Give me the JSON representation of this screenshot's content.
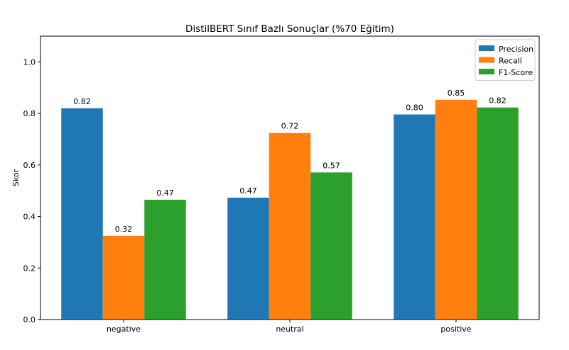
{
  "chart_data": {
    "type": "bar",
    "title": "DistilBERT Sınıf Bazlı Sonuçlar (%70 Eğitim)",
    "xlabel": "",
    "ylabel": "Skor",
    "ylim": [
      0,
      1.1
    ],
    "yticks": [
      0.0,
      0.2,
      0.4,
      0.6,
      0.8,
      1.0
    ],
    "ytick_labels": [
      "0.0",
      "0.2",
      "0.4",
      "0.6",
      "0.8",
      "1.0"
    ],
    "categories": [
      "negative",
      "neutral",
      "positive"
    ],
    "grid": false,
    "legend_position": "top-right",
    "series": [
      {
        "name": "Precision",
        "color": "#1f77b4",
        "values": [
          0.82,
          0.473,
          0.796
        ],
        "labels": [
          "0.82",
          "0.47",
          "0.80"
        ]
      },
      {
        "name": "Recall",
        "color": "#ff7f0e",
        "values": [
          0.325,
          0.724,
          0.853
        ],
        "labels": [
          "0.32",
          "0.72",
          "0.85"
        ]
      },
      {
        "name": "F1-Score",
        "color": "#2ca02c",
        "values": [
          0.465,
          0.571,
          0.823
        ],
        "labels": [
          "0.47",
          "0.57",
          "0.82"
        ]
      }
    ]
  }
}
